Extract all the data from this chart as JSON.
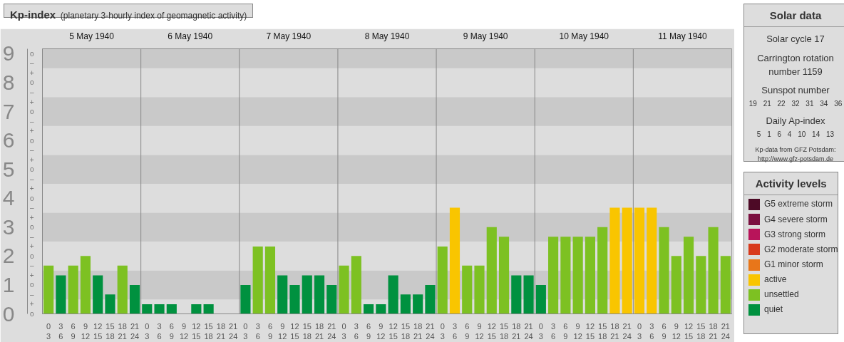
{
  "chart_data": [
    {
      "type": "bar",
      "title": "Kp-index",
      "subtitle": "(planetary 3-hourly index of geomagnetic activity)",
      "categories": [
        "0\n3",
        "3\n6",
        "6\n9",
        "9\n12",
        "12\n15",
        "15\n18",
        "18\n21",
        "21\n24",
        "0\n3",
        "3\n6",
        "6\n9",
        "9\n12",
        "12\n15",
        "15\n18",
        "18\n21",
        "21\n24",
        "0\n3",
        "3\n6",
        "6\n9",
        "9\n12",
        "12\n15",
        "15\n18",
        "18\n21",
        "21\n24",
        "0\n3",
        "3\n6",
        "6\n9",
        "9\n12",
        "12\n15",
        "15\n18",
        "18\n21",
        "21\n24",
        "0\n3",
        "3\n6",
        "6\n9",
        "9\n12",
        "12\n15",
        "15\n18",
        "18\n21",
        "21\n24",
        "0\n3",
        "3\n6",
        "6\n9",
        "9\n12",
        "12\n15",
        "15\n18",
        "18\n21",
        "21\n24",
        "0\n3",
        "3\n6",
        "6\n9",
        "9\n12",
        "12\n15",
        "15\n18",
        "18\n21",
        "21\n24"
      ],
      "annotations": [
        "5 May 1940",
        "6 May 1940",
        "7 May 1940",
        "8 May 1940",
        "9 May 1940",
        "10 May 1940",
        "11 May 1940",
        "o",
        "+",
        "–",
        "o",
        "+",
        "–",
        "o",
        "+",
        "–",
        "o",
        "+",
        "–",
        "o",
        "+",
        "–",
        "o",
        "+",
        "–",
        "o",
        "+",
        "–",
        "o",
        "+",
        "–",
        "o",
        "+",
        "–",
        "o"
      ],
      "series": [
        {
          "name": "G5 extreme storm",
          "color": "#4d0a26",
          "values": [
            null,
            null,
            null,
            null,
            null,
            null,
            null,
            null,
            null,
            null,
            null,
            null,
            null,
            null,
            null,
            null,
            null,
            null,
            null,
            null,
            null,
            null,
            null,
            null,
            null,
            null,
            null,
            null,
            null,
            null,
            null,
            null,
            null,
            null,
            null,
            null,
            null,
            null,
            null,
            null,
            null,
            null,
            null,
            null,
            null,
            null,
            null,
            null,
            null,
            null,
            null,
            null,
            null,
            null,
            null,
            null
          ]
        },
        {
          "name": "G4 severe storm",
          "color": "#7a1040",
          "values": [
            null,
            null,
            null,
            null,
            null,
            null,
            null,
            null,
            null,
            null,
            null,
            null,
            null,
            null,
            null,
            null,
            null,
            null,
            null,
            null,
            null,
            null,
            null,
            null,
            null,
            null,
            null,
            null,
            null,
            null,
            null,
            null,
            null,
            null,
            null,
            null,
            null,
            null,
            null,
            null,
            null,
            null,
            null,
            null,
            null,
            null,
            null,
            null,
            null,
            null,
            null,
            null,
            null,
            null,
            null,
            null
          ]
        },
        {
          "name": "G3 strong storm",
          "color": "#b8145a",
          "values": [
            null,
            null,
            null,
            null,
            null,
            null,
            null,
            null,
            null,
            null,
            null,
            null,
            null,
            null,
            null,
            null,
            null,
            null,
            null,
            null,
            null,
            null,
            null,
            null,
            null,
            null,
            null,
            null,
            null,
            null,
            null,
            null,
            null,
            null,
            null,
            null,
            null,
            null,
            null,
            null,
            null,
            null,
            null,
            null,
            null,
            null,
            null,
            null,
            null,
            null,
            null,
            null,
            null,
            null,
            null,
            null
          ]
        },
        {
          "name": "G2 moderate storm",
          "color": "#d83a1c",
          "values": [
            null,
            null,
            null,
            null,
            null,
            null,
            null,
            null,
            null,
            null,
            null,
            null,
            null,
            null,
            null,
            null,
            null,
            null,
            null,
            null,
            null,
            null,
            null,
            null,
            null,
            null,
            null,
            null,
            null,
            null,
            null,
            null,
            null,
            null,
            null,
            null,
            null,
            null,
            null,
            null,
            null,
            null,
            null,
            null,
            null,
            null,
            null,
            null,
            null,
            null,
            null,
            null,
            null,
            null,
            null,
            null
          ]
        },
        {
          "name": "G1 minor storm",
          "color": "#e8761a",
          "values": [
            null,
            null,
            null,
            null,
            null,
            null,
            null,
            null,
            null,
            null,
            null,
            null,
            null,
            null,
            null,
            null,
            null,
            null,
            null,
            null,
            null,
            null,
            null,
            null,
            null,
            null,
            null,
            null,
            null,
            null,
            null,
            null,
            null,
            null,
            null,
            null,
            null,
            null,
            null,
            null,
            null,
            null,
            null,
            null,
            null,
            null,
            null,
            null,
            null,
            null,
            null,
            null,
            null,
            null,
            null,
            null
          ]
        },
        {
          "name": "active",
          "color": "#f9c500",
          "values": [
            null,
            null,
            null,
            null,
            null,
            null,
            null,
            null,
            null,
            null,
            null,
            null,
            null,
            null,
            null,
            null,
            null,
            null,
            null,
            null,
            null,
            null,
            null,
            null,
            null,
            null,
            null,
            null,
            null,
            null,
            null,
            null,
            null,
            3.67,
            null,
            null,
            null,
            null,
            null,
            null,
            null,
            null,
            null,
            null,
            null,
            null,
            3.67,
            3.67,
            3.67,
            3.67,
            null,
            null,
            null,
            null,
            null,
            null
          ]
        },
        {
          "name": "unsettled",
          "color": "#7dc122",
          "values": [
            1.67,
            null,
            1.67,
            2,
            null,
            null,
            1.67,
            null,
            null,
            null,
            null,
            null,
            null,
            null,
            null,
            null,
            null,
            2.33,
            2.33,
            null,
            null,
            null,
            null,
            null,
            1.67,
            2,
            null,
            null,
            null,
            null,
            null,
            null,
            2.33,
            null,
            1.67,
            1.67,
            3,
            2.67,
            null,
            null,
            null,
            2.67,
            2.67,
            2.67,
            2.67,
            3,
            null,
            null,
            null,
            null,
            3,
            2,
            2.67,
            2,
            3,
            2
          ]
        },
        {
          "name": "quiet",
          "color": "#00913f",
          "values": [
            null,
            1.33,
            null,
            null,
            1.33,
            0.67,
            null,
            1,
            0.33,
            0.33,
            0.33,
            0,
            0.33,
            0.33,
            0,
            0,
            1,
            null,
            null,
            1.33,
            1,
            1.33,
            1.33,
            1,
            null,
            null,
            0.33,
            0.33,
            1.33,
            0.67,
            0.67,
            1,
            null,
            null,
            null,
            null,
            null,
            null,
            1.33,
            1.33,
            1,
            null,
            null,
            null,
            null,
            null,
            null,
            null,
            null,
            null,
            null,
            null,
            null,
            null,
            null,
            null
          ]
        }
      ],
      "ylim": [
        0,
        9.17
      ],
      "yticks": [
        0,
        1,
        2,
        3,
        4,
        5,
        6,
        7,
        8,
        9
      ],
      "bands": [
        {
          "axis": "y",
          "from": 0,
          "to": 0.5,
          "color": "#dddddd"
        },
        {
          "axis": "y",
          "from": 0.5,
          "to": 1.5,
          "color": "#c9c9c9"
        },
        {
          "axis": "y",
          "from": 1.5,
          "to": 2.5,
          "color": "#dddddd"
        },
        {
          "axis": "y",
          "from": 2.5,
          "to": 3.5,
          "color": "#c9c9c9"
        },
        {
          "axis": "y",
          "from": 3.5,
          "to": 4.5,
          "color": "#dddddd"
        },
        {
          "axis": "y",
          "from": 4.5,
          "to": 5.5,
          "color": "#c9c9c9"
        },
        {
          "axis": "y",
          "from": 5.5,
          "to": 6.5,
          "color": "#dddddd"
        },
        {
          "axis": "y",
          "from": 6.5,
          "to": 7.5,
          "color": "#c9c9c9"
        },
        {
          "axis": "y",
          "from": 7.5,
          "to": 8.5,
          "color": "#dddddd"
        },
        {
          "axis": "y",
          "from": 8.5,
          "to": 9.17,
          "color": "#c9c9c9"
        }
      ],
      "legend": "right",
      "legend_title": "Activity levels"
    },
    {
      "type": "other",
      "title": "Solar data",
      "annotations": [
        "Solar cycle 17",
        "Carrington rotation number 1159",
        "Sunspot number",
        "19 21 22 32 31 34 36",
        "Daily Ap-index",
        "5 1 6 4 10 14 13",
        "Kp-data from GFZ Potsdam: http://www.gfz-potsdam.de"
      ]
    }
  ]
}
